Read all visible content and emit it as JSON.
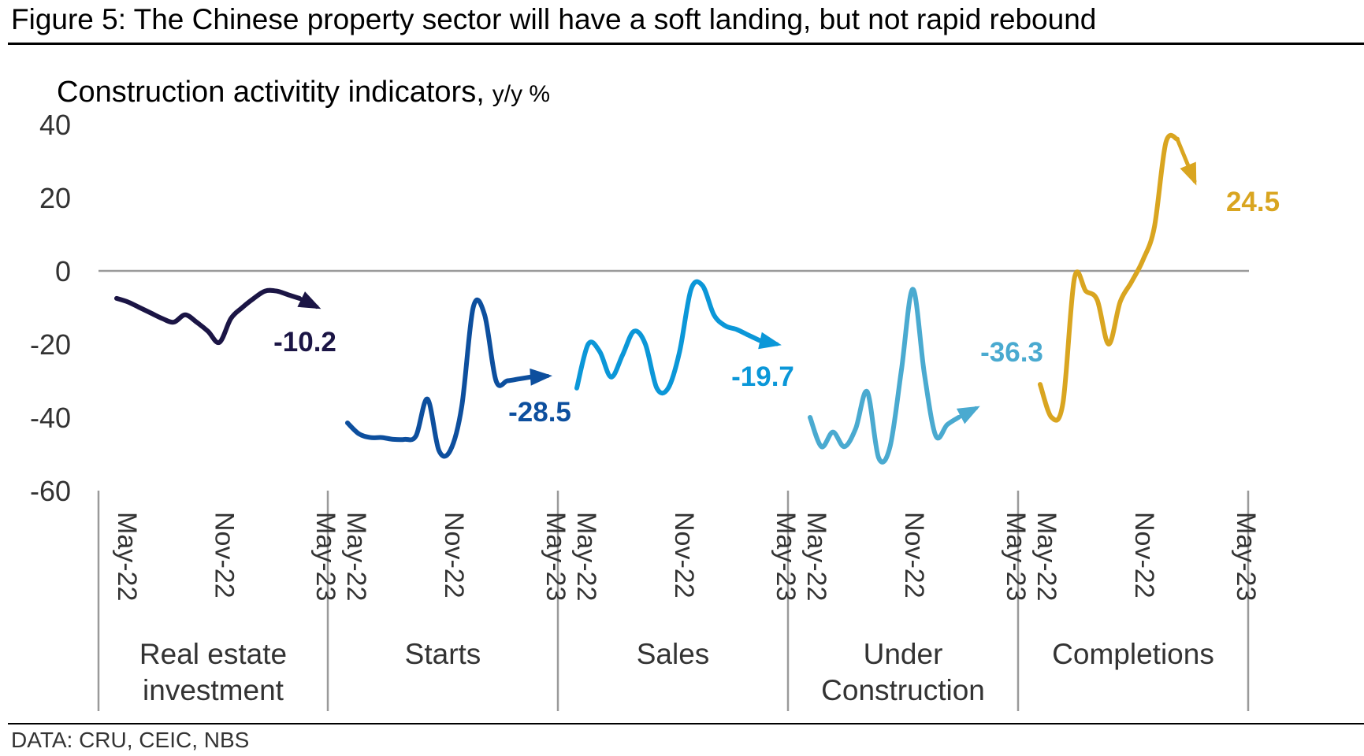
{
  "figure_title": "Figure 5: The Chinese property sector will have a soft landing, but not rapid rebound",
  "source": "DATA: CRU, CEIC, NBS",
  "chart_data": {
    "type": "line",
    "title": "Construction activitity indicators,",
    "subtitle": "y/y %",
    "ylim": [
      -60,
      40
    ],
    "yticks": [
      40,
      20,
      0,
      -20,
      -40,
      -60
    ],
    "ytick_labels": [
      "40",
      "20",
      "0",
      "-20",
      "-40",
      "-60"
    ],
    "month_ticks": [
      "May-22",
      "Nov-22",
      "May-23"
    ],
    "grid": false,
    "series": [
      {
        "name": "Real estate investment",
        "color": "#1b1545",
        "values": [
          -7.5,
          -8.5,
          -10,
          -11.5,
          -13,
          -14,
          -12,
          -14,
          -16.5,
          -19.5,
          -13,
          -10,
          -7.5,
          -5.5,
          -5.5,
          -6.5,
          -7.5
        ],
        "arrow": [
          -7.5,
          -9.8
        ],
        "end_label": "-10.2"
      },
      {
        "name": "Starts",
        "color": "#0d4f9e",
        "values": [
          -41.5,
          -44.5,
          -45.5,
          -45.5,
          -46,
          -46,
          -45,
          -35,
          -49,
          -49,
          -37,
          -10,
          -12,
          -30,
          -30,
          -29.5,
          -29
        ],
        "arrow": [
          -29,
          -28.7
        ],
        "end_label": "-28.5"
      },
      {
        "name": "Sales",
        "color": "#0b97d8",
        "values": [
          -32,
          -20,
          -22,
          -29,
          -23,
          -16.5,
          -20,
          -32,
          -32,
          -22,
          -5,
          -4,
          -12,
          -15,
          -16,
          -17.5,
          -19
        ],
        "arrow": [
          -19,
          -20
        ],
        "end_label": "-19.7"
      },
      {
        "name": "Under Construction",
        "color": "#4aaad0",
        "values": [
          -40,
          -48,
          -44,
          -48,
          -43,
          -33,
          -51,
          -48,
          -27,
          -5,
          -28,
          -45,
          -42,
          -40
        ],
        "arrow": [
          -40,
          -37.5
        ],
        "end_label": "-36.3"
      },
      {
        "name": "Completions",
        "color": "#d9a520",
        "values": [
          -31,
          -40,
          -36,
          -2,
          -5.5,
          -8,
          -20,
          -8.5,
          -3,
          3,
          12,
          35,
          36
        ],
        "arrow": [
          36,
          24.5
        ],
        "end_label": "24.5"
      }
    ],
    "group_labels": [
      [
        "Real estate",
        "investment"
      ],
      [
        "Starts"
      ],
      [
        "Sales"
      ],
      [
        "Under",
        "Construction"
      ],
      [
        "Completions"
      ]
    ]
  }
}
